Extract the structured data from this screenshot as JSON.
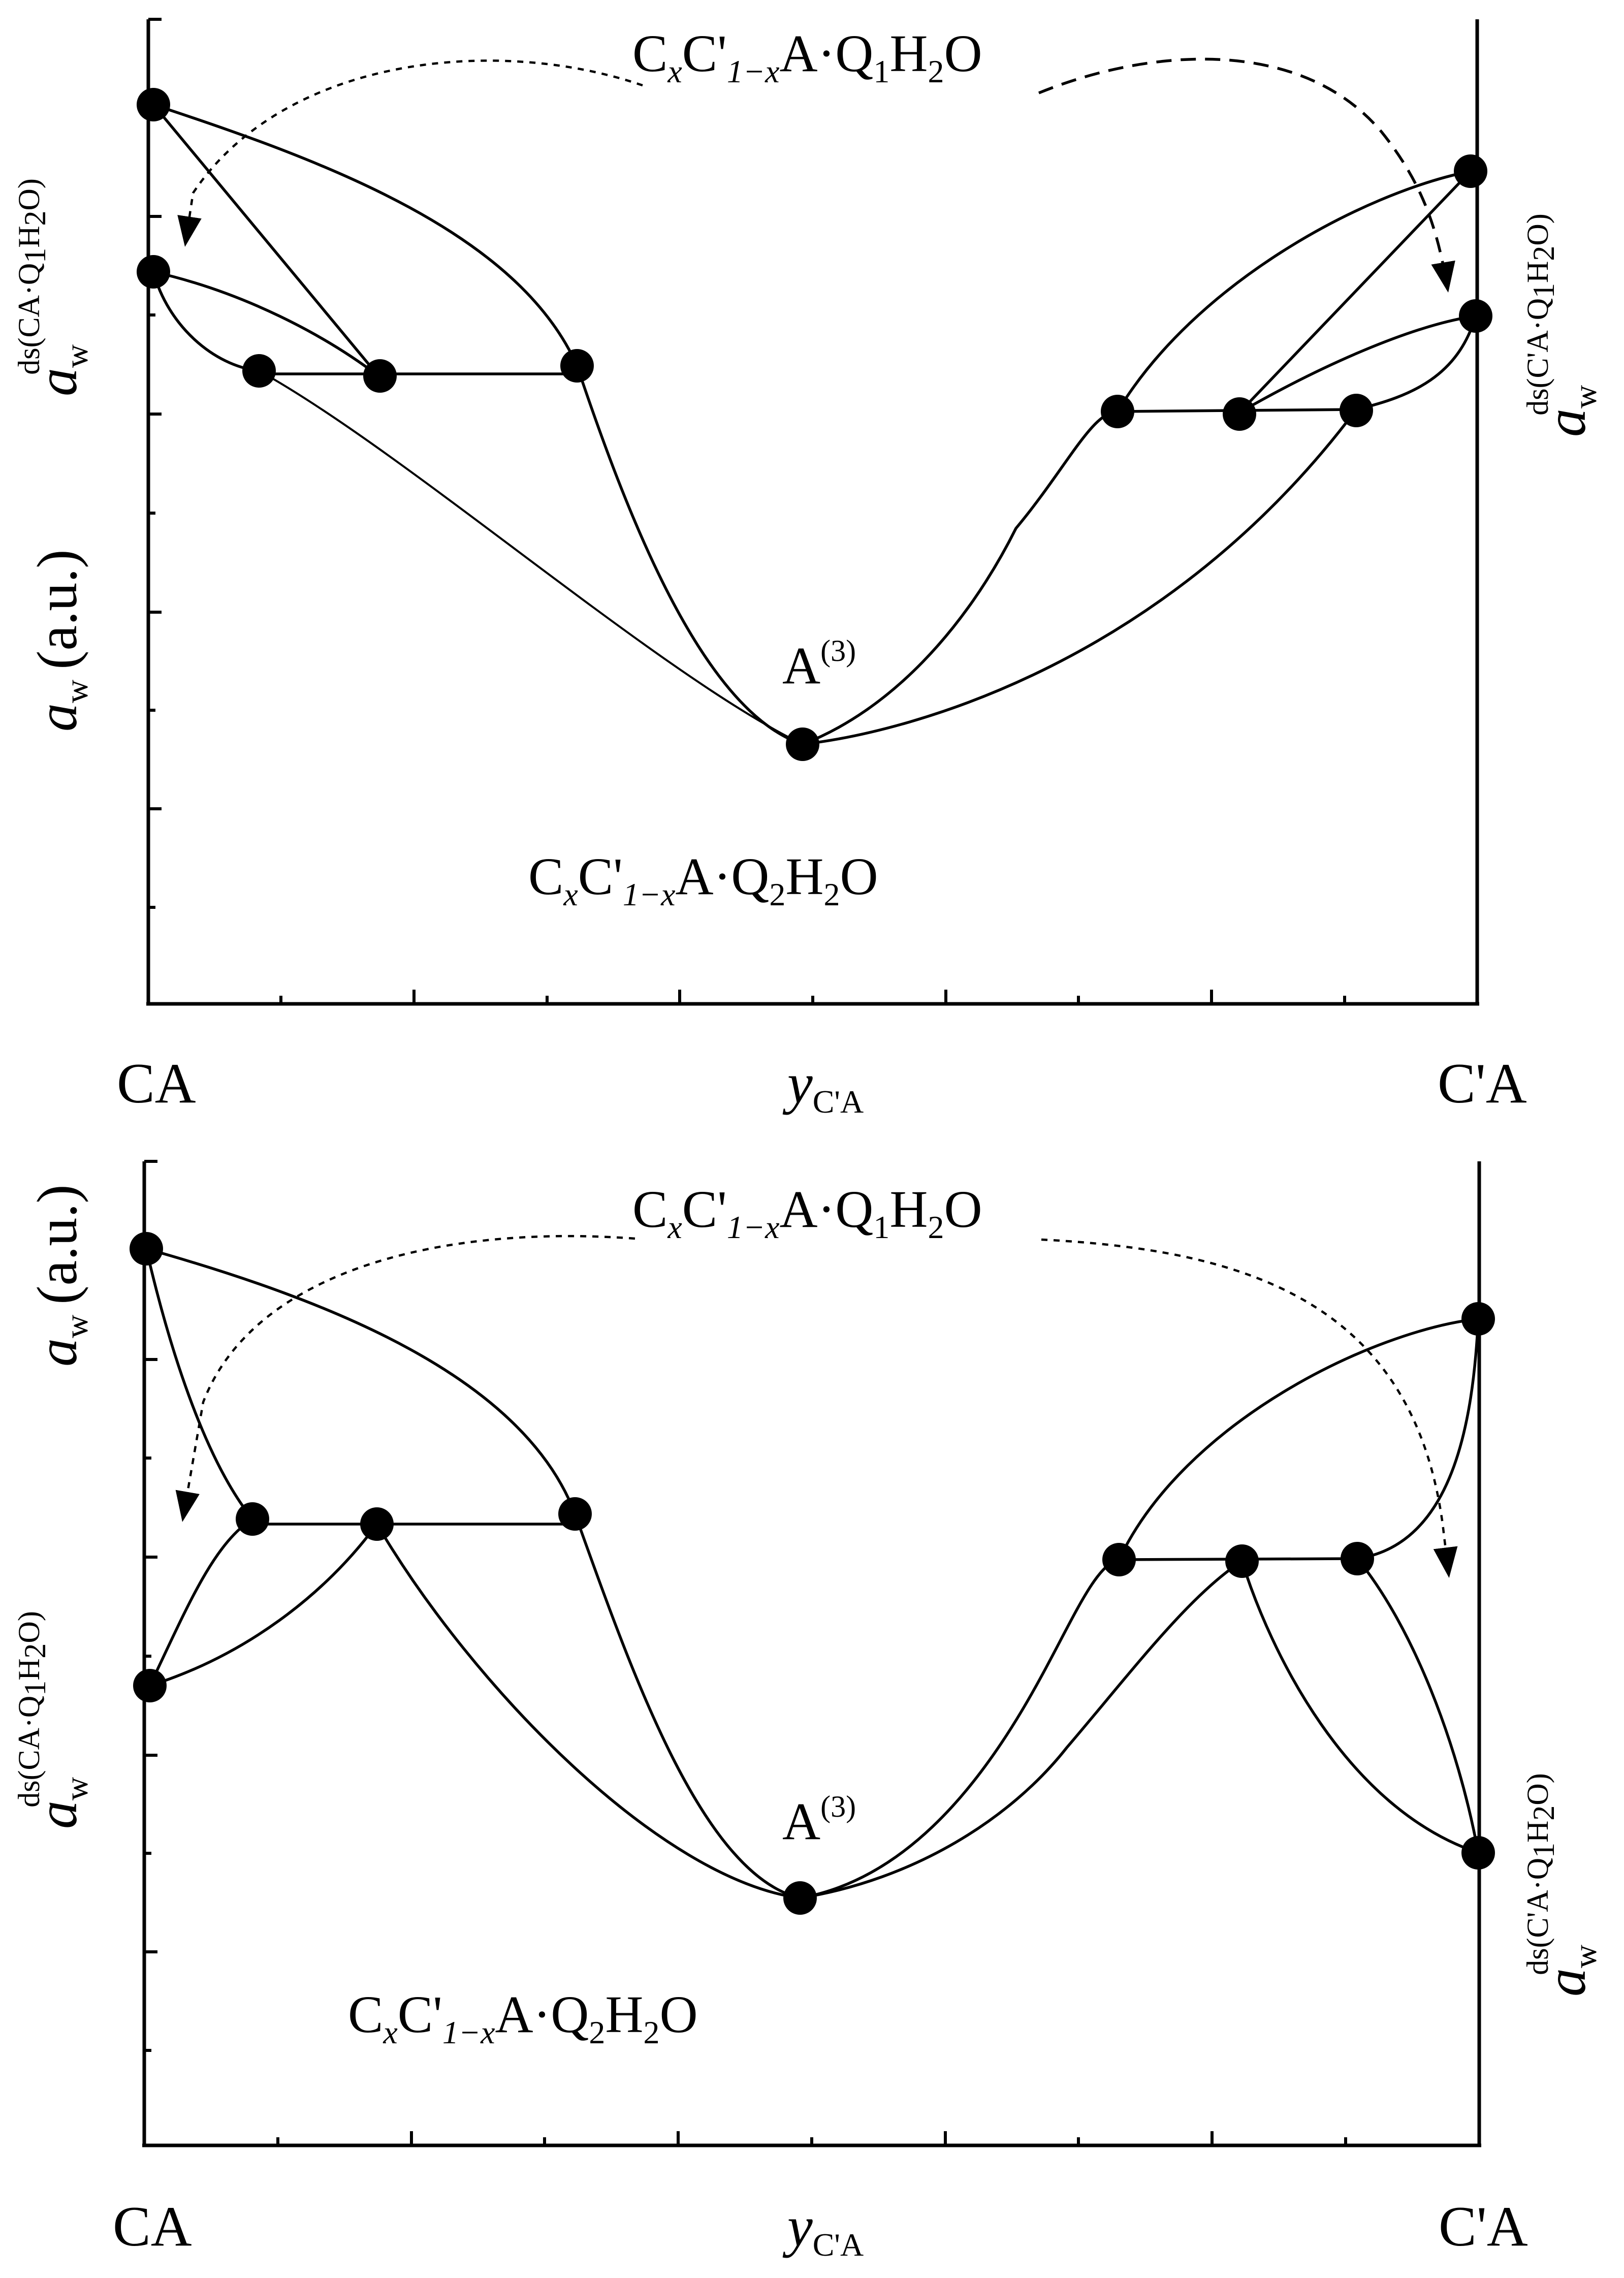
{
  "figure": {
    "panels": [
      {
        "id": "top",
        "y_axis_label": {
          "symbol": "a",
          "subscript": "w",
          "unit": "(a.u.)"
        },
        "left_end_label": "CA",
        "right_end_label": "C'A",
        "x_axis_label": {
          "symbol": "y",
          "subscript": "C'A"
        },
        "center_point_label": {
          "base": "A",
          "superscript": "(3)"
        },
        "upper_phase_label": {
          "prefix": "C",
          "x1": "x",
          "mid": "C'",
          "x2": "1−x",
          "rest": "A·Q",
          "q": "1",
          "water": "H",
          "h": "2",
          "o": "O"
        },
        "lower_phase_label": {
          "prefix": "C",
          "x1": "x",
          "mid": "C'",
          "x2": "1−x",
          "rest": "A·Q",
          "q": "2",
          "water": "H",
          "h": "2",
          "o": "O"
        },
        "left_ds_label": {
          "symbol": "a",
          "subscript": "w",
          "superscript": "ds(CA·Q",
          "q": "1",
          "h": "H",
          "two": "2",
          "tail": "O)"
        },
        "right_ds_label": {
          "symbol": "a",
          "subscript": "w",
          "superscript": "ds(C'A·Q",
          "q": "1",
          "h": "H",
          "two": "2",
          "tail": "O)"
        }
      },
      {
        "id": "bottom",
        "y_axis_label": {
          "symbol": "a",
          "subscript": "w",
          "unit": "(a.u.)"
        },
        "left_end_label": "CA",
        "right_end_label": "C'A",
        "x_axis_label": {
          "symbol": "y",
          "subscript": "C'A"
        },
        "center_point_label": {
          "base": "A",
          "superscript": "(3)"
        },
        "upper_phase_label": {
          "prefix": "C",
          "x1": "x",
          "mid": "C'",
          "x2": "1−x",
          "rest": "A·Q",
          "q": "1",
          "water": "H",
          "h": "2",
          "o": "O"
        },
        "lower_phase_label": {
          "prefix": "C",
          "x1": "x",
          "mid": "C'",
          "x2": "1−x",
          "rest": "A·Q",
          "q": "2",
          "water": "H",
          "h": "2",
          "o": "O"
        },
        "left_ds_label": {
          "symbol": "a",
          "subscript": "w",
          "superscript": "ds(CA·Q",
          "q": "1",
          "h": "H",
          "two": "2",
          "tail": "O)"
        },
        "right_ds_label": {
          "symbol": "a",
          "subscript": "w",
          "superscript": "ds(C'A·Q",
          "q": "1",
          "h": "H",
          "two": "2",
          "tail": "O)"
        }
      }
    ]
  }
}
